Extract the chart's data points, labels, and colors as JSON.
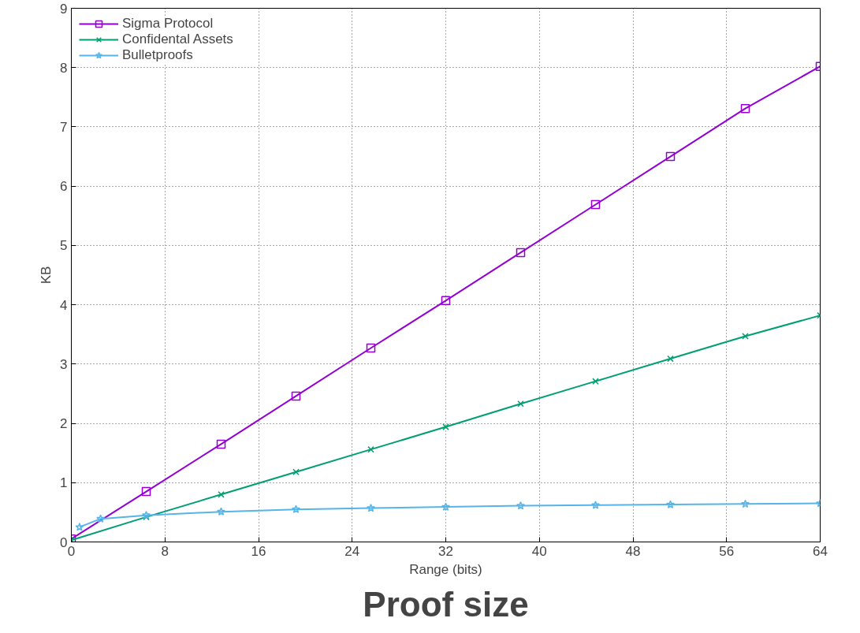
{
  "chart_data": {
    "type": "line",
    "title": "Proof size",
    "xlabel": "Range (bits)",
    "ylabel": "KB",
    "xlim": [
      0,
      64
    ],
    "ylim": [
      0,
      9
    ],
    "xticks": [
      0,
      8,
      16,
      24,
      32,
      40,
      48,
      56,
      64
    ],
    "yticks": [
      0,
      1,
      2,
      3,
      4,
      5,
      6,
      7,
      8,
      9
    ],
    "grid": true,
    "legend": "top left",
    "line_style": "solid",
    "series": [
      {
        "name": "Sigma Protocol",
        "color": "#9400d3",
        "marker": "square",
        "x": [
          0,
          6.4,
          12.8,
          19.2,
          25.6,
          32,
          38.4,
          44.8,
          51.2,
          57.6,
          64
        ],
        "values": [
          0.05,
          0.85,
          1.65,
          2.46,
          3.27,
          4.07,
          4.88,
          5.69,
          6.5,
          7.31,
          8.02
        ]
      },
      {
        "name": "Confidental Assets",
        "color": "#009e73",
        "marker": "cross",
        "x": [
          0,
          6.4,
          12.8,
          19.2,
          25.6,
          32,
          38.4,
          44.8,
          51.2,
          57.6,
          64
        ],
        "values": [
          0.03,
          0.42,
          0.8,
          1.18,
          1.56,
          1.94,
          2.33,
          2.71,
          3.09,
          3.47,
          3.82
        ]
      },
      {
        "name": "Bulletproofs",
        "color": "#56b4e9",
        "marker": "star",
        "x": [
          0.7,
          2.5,
          6.4,
          12.8,
          19.2,
          25.6,
          32,
          38.4,
          44.8,
          51.2,
          57.6,
          64
        ],
        "values": [
          0.25,
          0.39,
          0.45,
          0.51,
          0.55,
          0.57,
          0.59,
          0.61,
          0.62,
          0.63,
          0.64,
          0.65
        ]
      }
    ]
  }
}
